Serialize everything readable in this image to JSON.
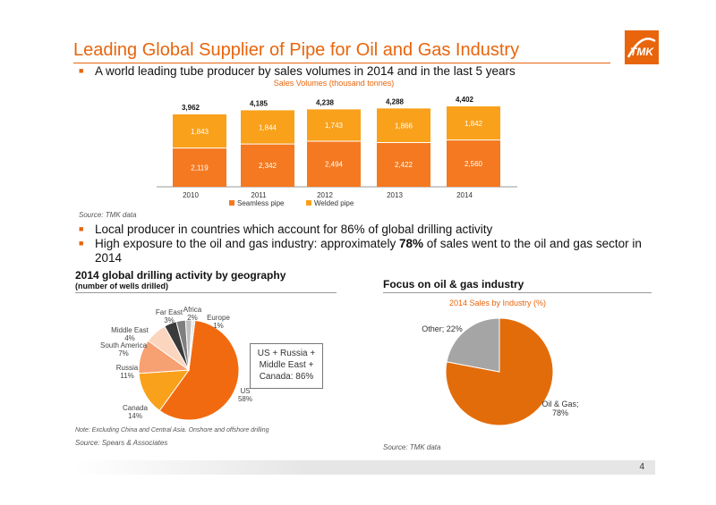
{
  "title": "Leading Global Supplier of Pipe for Oil and Gas Industry",
  "bullets": {
    "b1": "A world leading tube producer by sales volumes in 2014 and in the last 5 years",
    "b2": "Local producer in countries which account for 86% of global drilling activity",
    "b3_pre": "High exposure to the oil and gas industry: approximately ",
    "b3_bold": "78%",
    "b3_post": " of sales went to the oil and gas sector in",
    "b3_line2": "2014"
  },
  "sources": {
    "top": "Source:  TMK data",
    "note": "Note: Excluding China and Central Asia. Onshore and offshore drilling",
    "left": "Source:  Spears & Associates",
    "right": "Source:  TMK data"
  },
  "left_section": {
    "title": "2014 global drilling activity by geography",
    "subtitle": "(number of wells drilled)"
  },
  "right_section": {
    "title": "Focus on oil & gas industry"
  },
  "callout": {
    "line1": "US + Russia +",
    "line2": "Middle East +",
    "line3": "Canada: 86%"
  },
  "page_number": "4",
  "colors": {
    "accent": "#e8650c",
    "seamless": "#f47920",
    "welded": "#f9a11b",
    "oil_gas": "#e36c0a",
    "other": "#a5a5a5"
  },
  "chart_data": [
    {
      "type": "bar",
      "stacked": true,
      "title": "Sales Volumes (thousand tonnes)",
      "categories": [
        "2010",
        "2011",
        "2012",
        "2013",
        "2014"
      ],
      "series": [
        {
          "name": "Seamless pipe",
          "values": [
            2119,
            2342,
            2494,
            2422,
            2560
          ],
          "labels": [
            "2,119",
            "2,342",
            "2,494",
            "2,422",
            "2,560"
          ]
        },
        {
          "name": "Welded pipe",
          "values": [
            1843,
            1844,
            1743,
            1866,
            1842
          ],
          "labels": [
            "1,843",
            "1,844",
            "1,743",
            "1,866",
            "1,842"
          ]
        }
      ],
      "totals": [
        "3,962",
        "4,185",
        "4,238",
        "4,288",
        "4,402"
      ],
      "total_values": [
        3962,
        4185,
        4238,
        4288,
        4402
      ],
      "legend": "bottom"
    },
    {
      "type": "pie",
      "slices": [
        {
          "label": "US",
          "pct": "58%",
          "value": 58,
          "color": "#f26a0f"
        },
        {
          "label": "Canada",
          "pct": "14%",
          "value": 14,
          "color": "#f9a11b"
        },
        {
          "label": "Russia",
          "pct": "11%",
          "value": 11,
          "color": "#f7a072"
        },
        {
          "label": "South America",
          "pct": "7%",
          "value": 7,
          "color": "#fbd5bd"
        },
        {
          "label": "Middle East",
          "pct": "4%",
          "value": 4,
          "color": "#3a3a3a"
        },
        {
          "label": "Far East",
          "pct": "3%",
          "value": 3,
          "color": "#7f7f7f"
        },
        {
          "label": "Africa",
          "pct": "2%",
          "value": 2,
          "color": "#bfbfbf"
        },
        {
          "label": "Europe",
          "pct": "1%",
          "value": 1,
          "color": "#e9e9e9"
        }
      ]
    },
    {
      "type": "pie",
      "title": "2014 Sales by Industry (%)",
      "slices": [
        {
          "label": "Oil & Gas;",
          "pct": "78%",
          "value": 78,
          "color": "#e36c0a"
        },
        {
          "label": "Other;",
          "pct": "22%",
          "value": 22,
          "color": "#a5a5a5"
        }
      ]
    }
  ]
}
